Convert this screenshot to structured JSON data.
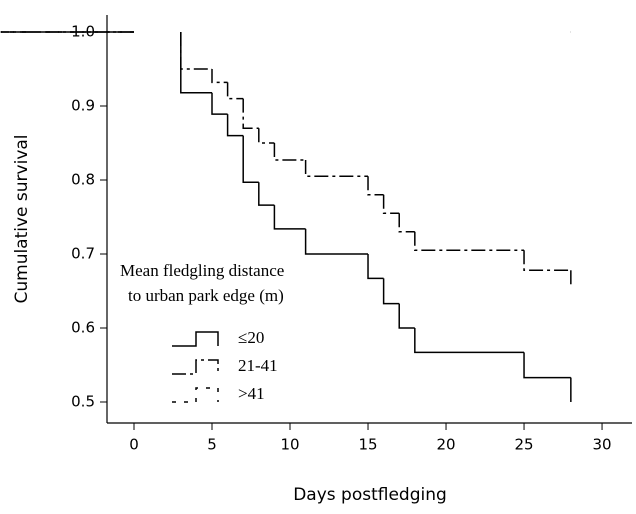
{
  "chart_data": {
    "type": "step",
    "xlabel": "Days postfledging",
    "ylabel": "Cumulative survival",
    "xlim": [
      -1.73,
      31.92
    ],
    "ylim": [
      0.4716,
      1.023
    ],
    "xticks": [
      0,
      5,
      10,
      15,
      20,
      25,
      30
    ],
    "yticks": [
      0.5,
      0.6,
      0.7,
      0.8,
      0.9,
      {
        "value": 1,
        "label": "1.0"
      }
    ],
    "legend_title": [
      "Mean fledgling distance",
      "to urban park edge (m)"
    ],
    "series": [
      {
        "name": "≤20",
        "color": "#000000",
        "dash": "none",
        "x": [
          0,
          3,
          5,
          6,
          7,
          8,
          9,
          11,
          15,
          16,
          17,
          18,
          25,
          28
        ],
        "values": [
          1.0,
          0.918,
          0.889,
          0.86,
          0.797,
          0.766,
          0.734,
          0.7,
          0.667,
          0.633,
          0.6,
          0.567,
          0.533,
          0.5
        ]
      },
      {
        "name": "21-41",
        "color": "#000000",
        "dash": "14 4 3 4",
        "x": [
          0,
          3,
          5,
          6,
          7,
          8,
          9,
          11,
          15,
          16,
          17,
          18,
          25,
          28
        ],
        "values": [
          1.0,
          0.95,
          0.932,
          0.91,
          0.87,
          0.85,
          0.827,
          0.805,
          0.78,
          0.755,
          0.73,
          0.705,
          0.678,
          0.655
        ]
      },
      {
        "name": ">41",
        "color": "#000000",
        "dash": "4 8",
        "x": [
          0,
          28
        ],
        "values": [
          1.0,
          1.0
        ]
      }
    ]
  }
}
